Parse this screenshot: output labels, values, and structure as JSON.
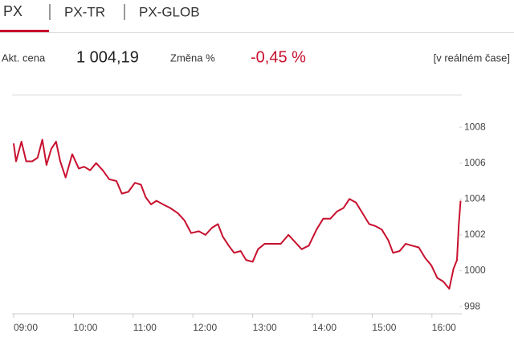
{
  "tabs": [
    "PX",
    "PX-TR",
    "PX-GLOB"
  ],
  "quote": {
    "price_label": "Akt. cena",
    "price": "1 004,19",
    "change_label": "Změna %",
    "change": "-0,45 %",
    "mode": "[v reálném čase]"
  },
  "chart_data": {
    "type": "line",
    "x": [
      9.0,
      9.04,
      9.13,
      9.21,
      9.31,
      9.4,
      9.48,
      9.55,
      9.63,
      9.71,
      9.78,
      9.87,
      9.98,
      10.09,
      10.18,
      10.28,
      10.38,
      10.49,
      10.6,
      10.72,
      10.81,
      10.92,
      11.03,
      11.13,
      11.21,
      11.3,
      11.39,
      11.5,
      11.62,
      11.75,
      11.86,
      11.97,
      12.1,
      12.21,
      12.32,
      12.42,
      12.5,
      12.6,
      12.69,
      12.8,
      12.89,
      13.0,
      13.09,
      13.2,
      13.34,
      13.47,
      13.6,
      13.71,
      13.82,
      13.94,
      14.07,
      14.18,
      14.3,
      14.41,
      14.52,
      14.62,
      14.73,
      14.84,
      14.95,
      15.05,
      15.16,
      15.27,
      15.35,
      15.46,
      15.56,
      15.67,
      15.78,
      15.89,
      15.99,
      16.09,
      16.19,
      16.29,
      16.36,
      16.42,
      16.45,
      16.48
    ],
    "series": [
      {
        "name": "PX",
        "color": "#c8102e",
        "values": [
          1007.1,
          1006.1,
          1007.2,
          1006.1,
          1006.1,
          1006.3,
          1007.3,
          1005.9,
          1006.8,
          1007.2,
          1006.1,
          1005.2,
          1006.5,
          1005.7,
          1005.8,
          1005.6,
          1006.0,
          1005.6,
          1005.1,
          1005.0,
          1004.3,
          1004.4,
          1004.9,
          1004.8,
          1004.1,
          1003.7,
          1003.9,
          1003.7,
          1003.5,
          1003.2,
          1002.8,
          1002.1,
          1002.2,
          1002.0,
          1002.4,
          1002.6,
          1001.9,
          1001.4,
          1001.0,
          1001.1,
          1000.6,
          1000.5,
          1001.2,
          1001.5,
          1001.5,
          1001.5,
          1002.0,
          1001.6,
          1001.2,
          1001.4,
          1002.3,
          1002.9,
          1002.9,
          1003.3,
          1003.5,
          1004.0,
          1003.8,
          1003.2,
          1002.6,
          1002.5,
          1002.3,
          1001.7,
          1001.0,
          1001.1,
          1001.5,
          1001.4,
          1001.3,
          1000.7,
          1000.3,
          999.6,
          999.4,
          999.0,
          1000.1,
          1000.6,
          1002.6,
          1003.9
        ]
      }
    ],
    "xlim": [
      9,
      16.5
    ],
    "xticks": [
      {
        "value": 9,
        "label": "09:00"
      },
      {
        "value": 10,
        "label": "10:00"
      },
      {
        "value": 11,
        "label": "11:00"
      },
      {
        "value": 12,
        "label": "12:00"
      },
      {
        "value": 13,
        "label": "13:00"
      },
      {
        "value": 14,
        "label": "14:00"
      },
      {
        "value": 15,
        "label": "15:00"
      },
      {
        "value": 16,
        "label": "16:00"
      }
    ],
    "ylim": [
      997.6,
      1009.8
    ],
    "yticks": [
      998,
      1000,
      1002,
      1004,
      1006,
      1008
    ]
  }
}
